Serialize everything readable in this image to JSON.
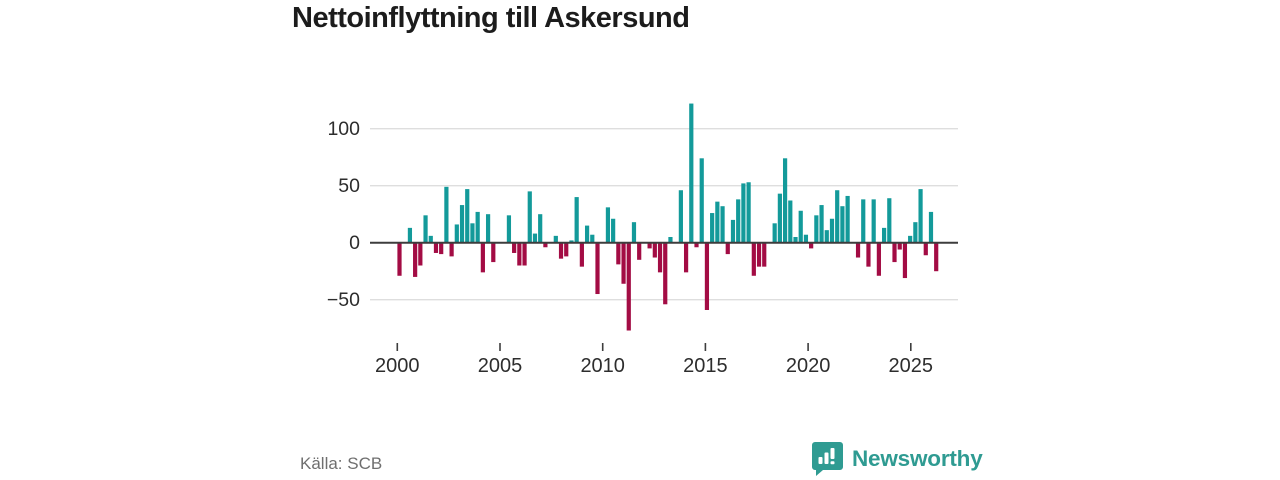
{
  "title": {
    "text": "Nettoinflyttning till Askersund"
  },
  "footer": {
    "source": "Källa: SCB"
  },
  "brand": {
    "name": "Newsworthy",
    "logo_icon": "speech-bubble-bar-chart-icon",
    "color": "#2f9b92"
  },
  "chart_data": {
    "type": "bar",
    "title": "Nettoinflyttning till Askersund",
    "xlabel": "",
    "ylabel": "",
    "frequency": "quarterly",
    "start_period": "2000Q1",
    "end_period": "2025Q4",
    "values": [
      -29,
      0,
      13,
      -30,
      -20,
      24,
      6,
      -9,
      -10,
      49,
      -12,
      16,
      33,
      47,
      17,
      27,
      -26,
      25,
      -17,
      0,
      0,
      24,
      -9,
      -20,
      -20,
      45,
      8,
      25,
      -4,
      0,
      6,
      -14,
      -12,
      2,
      40,
      -21,
      15,
      7,
      -45,
      0,
      31,
      21,
      -19,
      -36,
      -77,
      18,
      -15,
      0,
      -5,
      -13,
      -26,
      -54,
      5,
      0,
      46,
      -26,
      122,
      -4,
      74,
      -59,
      26,
      36,
      32,
      -10,
      20,
      38,
      52,
      53,
      -29,
      -21,
      -21,
      0,
      17,
      43,
      74,
      37,
      5,
      28,
      7,
      -5,
      24,
      33,
      11,
      21,
      46,
      32,
      41,
      0,
      -13,
      38,
      -21,
      38,
      -29,
      13,
      39,
      -17,
      -6,
      -31,
      6,
      18,
      47,
      -11,
      27,
      -25
    ],
    "ylim": [
      -85,
      135
    ],
    "ytick_values": [
      100,
      50,
      0,
      -50
    ],
    "ytick_labels": [
      "100",
      "50",
      "0",
      "−50"
    ],
    "xtick_years": [
      2000,
      2005,
      2010,
      2015,
      2020,
      2025
    ],
    "xtick_labels": [
      "2000",
      "2005",
      "2010",
      "2015",
      "2020",
      "2025"
    ],
    "grid": true,
    "legend": "none",
    "colors": {
      "positive": "#139a9a",
      "negative": "#a30c44",
      "axis": "#3d3d3d",
      "gridline": "#dedede",
      "tick_text": "#2d2d2d"
    }
  }
}
